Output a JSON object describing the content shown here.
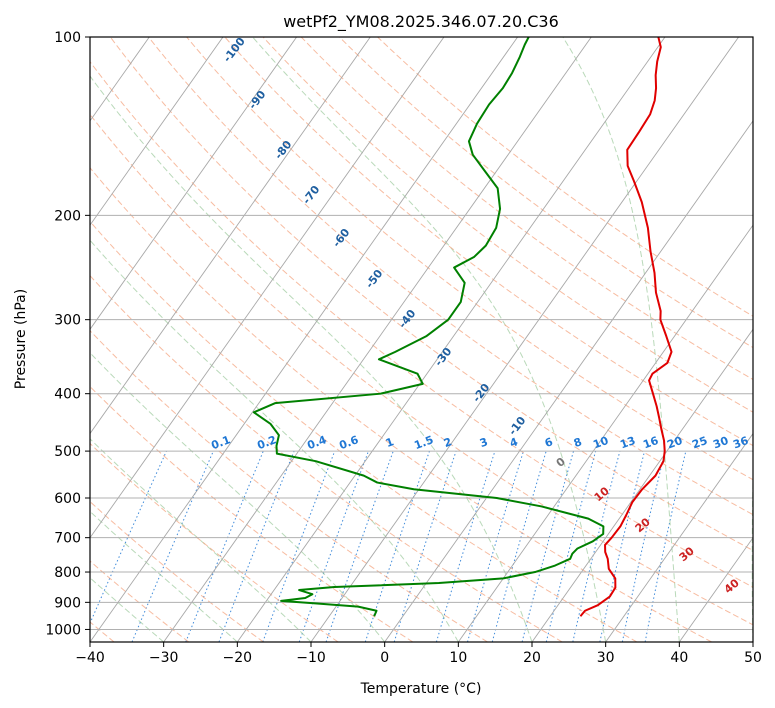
{
  "chart_data": {
    "type": "line",
    "title": "wetPf2_YM08.2025.346.07.20.C36",
    "xlabel": "Temperature (°C)",
    "ylabel": "Pressure (hPa)",
    "xlim": [
      -40,
      50
    ],
    "ylim": [
      1050,
      100
    ],
    "y_scale": "log",
    "x_ticks": [
      -40,
      -30,
      -20,
      -10,
      0,
      10,
      20,
      30,
      40,
      50
    ],
    "x_tick_labels": [
      "−40",
      "−30",
      "−20",
      "−10",
      "0",
      "10",
      "20",
      "30",
      "40",
      "50"
    ],
    "y_ticks": [
      1000,
      900,
      800,
      700,
      600,
      500,
      400,
      300,
      200,
      100
    ],
    "y_tick_labels": [
      "1000",
      "900",
      "800",
      "700",
      "600",
      "500",
      "400",
      "300",
      "200",
      "100"
    ],
    "grid": true,
    "series": [
      {
        "color": "#e00000",
        "points": [
          {
            "p": 950,
            "t": 24.1
          },
          {
            "p": 930,
            "t": 24.2
          },
          {
            "p": 910,
            "t": 25.4
          },
          {
            "p": 880,
            "t": 26.2
          },
          {
            "p": 850,
            "t": 26.1
          },
          {
            "p": 820,
            "t": 25.2
          },
          {
            "p": 790,
            "t": 23.4
          },
          {
            "p": 760,
            "t": 22.3
          },
          {
            "p": 740,
            "t": 21.3
          },
          {
            "p": 720,
            "t": 20.6
          },
          {
            "p": 700,
            "t": 20.8
          },
          {
            "p": 670,
            "t": 20.9
          },
          {
            "p": 640,
            "t": 20.6
          },
          {
            "p": 610,
            "t": 20.2
          },
          {
            "p": 580,
            "t": 20.3
          },
          {
            "p": 550,
            "t": 20.8
          },
          {
            "p": 520,
            "t": 20.5
          },
          {
            "p": 500,
            "t": 19.7
          },
          {
            "p": 480,
            "t": 18.6
          },
          {
            "p": 460,
            "t": 17.2
          },
          {
            "p": 440,
            "t": 15.8
          },
          {
            "p": 420,
            "t": 14.3
          },
          {
            "p": 400,
            "t": 12.6
          },
          {
            "p": 380,
            "t": 10.8
          },
          {
            "p": 370,
            "t": 10.6
          },
          {
            "p": 355,
            "t": 11.6
          },
          {
            "p": 340,
            "t": 11.1
          },
          {
            "p": 320,
            "t": 8.9
          },
          {
            "p": 300,
            "t": 6.5
          },
          {
            "p": 290,
            "t": 5.7
          },
          {
            "p": 270,
            "t": 3.3
          },
          {
            "p": 250,
            "t": 1.2
          },
          {
            "p": 230,
            "t": -1.4
          },
          {
            "p": 210,
            "t": -4.0
          },
          {
            "p": 190,
            "t": -7.3
          },
          {
            "p": 175,
            "t": -10.4
          },
          {
            "p": 165,
            "t": -12.7
          },
          {
            "p": 155,
            "t": -14.3
          },
          {
            "p": 145,
            "t": -14.4
          },
          {
            "p": 135,
            "t": -14.6
          },
          {
            "p": 128,
            "t": -15.3
          },
          {
            "p": 122,
            "t": -16.3
          },
          {
            "p": 116,
            "t": -17.6
          },
          {
            "p": 110,
            "t": -18.7
          },
          {
            "p": 104,
            "t": -19.6
          },
          {
            "p": 100,
            "t": -20.9
          }
        ]
      },
      {
        "color": "#008000",
        "points": [
          {
            "p": 950,
            "t": -3.9
          },
          {
            "p": 930,
            "t": -4.1
          },
          {
            "p": 915,
            "t": -7.0
          },
          {
            "p": 905,
            "t": -12.4
          },
          {
            "p": 895,
            "t": -18.0
          },
          {
            "p": 885,
            "t": -15.0
          },
          {
            "p": 872,
            "t": -14.4
          },
          {
            "p": 858,
            "t": -16.6
          },
          {
            "p": 848,
            "t": -12.1
          },
          {
            "p": 835,
            "t": 1.7
          },
          {
            "p": 820,
            "t": 10.0
          },
          {
            "p": 800,
            "t": 13.7
          },
          {
            "p": 780,
            "t": 15.8
          },
          {
            "p": 760,
            "t": 17.2
          },
          {
            "p": 745,
            "t": 17.0
          },
          {
            "p": 730,
            "t": 17.2
          },
          {
            "p": 710,
            "t": 18.6
          },
          {
            "p": 690,
            "t": 19.3
          },
          {
            "p": 670,
            "t": 18.6
          },
          {
            "p": 650,
            "t": 15.8
          },
          {
            "p": 620,
            "t": 8.3
          },
          {
            "p": 600,
            "t": 1.4
          },
          {
            "p": 580,
            "t": -10.7
          },
          {
            "p": 565,
            "t": -16.3
          },
          {
            "p": 550,
            "t": -18.8
          },
          {
            "p": 520,
            "t": -26.7
          },
          {
            "p": 505,
            "t": -32.7
          },
          {
            "p": 490,
            "t": -33.5
          },
          {
            "p": 470,
            "t": -34.2
          },
          {
            "p": 450,
            "t": -36.4
          },
          {
            "p": 430,
            "t": -39.8
          },
          {
            "p": 415,
            "t": -37.8
          },
          {
            "p": 400,
            "t": -24.4
          },
          {
            "p": 385,
            "t": -19.6
          },
          {
            "p": 370,
            "t": -21.3
          },
          {
            "p": 350,
            "t": -27.9
          },
          {
            "p": 340,
            "t": -26.4
          },
          {
            "p": 320,
            "t": -23.7
          },
          {
            "p": 300,
            "t": -22.3
          },
          {
            "p": 280,
            "t": -22.3
          },
          {
            "p": 260,
            "t": -23.6
          },
          {
            "p": 245,
            "t": -26.5
          },
          {
            "p": 235,
            "t": -24.8
          },
          {
            "p": 225,
            "t": -24.3
          },
          {
            "p": 210,
            "t": -24.6
          },
          {
            "p": 195,
            "t": -25.9
          },
          {
            "p": 180,
            "t": -28.2
          },
          {
            "p": 168,
            "t": -31.7
          },
          {
            "p": 158,
            "t": -34.8
          },
          {
            "p": 150,
            "t": -36.6
          },
          {
            "p": 140,
            "t": -37.2
          },
          {
            "p": 130,
            "t": -37.4
          },
          {
            "p": 122,
            "t": -37.1
          },
          {
            "p": 115,
            "t": -37.3
          },
          {
            "p": 108,
            "t": -37.8
          },
          {
            "p": 103,
            "t": -38.3
          },
          {
            "p": 100,
            "t": -38.5
          }
        ]
      }
    ],
    "dry_adiabat_labels": [
      "-100",
      "-90",
      "-80",
      "-70",
      "-60",
      "-50",
      "-40",
      "-30",
      "-20",
      "-10"
    ],
    "moist_adiabat_labels": [
      "0",
      "10",
      "20",
      "30",
      "40"
    ],
    "mixing_ratio_labels": [
      "0.1",
      "0.2",
      "0.4",
      "0.6",
      "1",
      "1.5",
      "2",
      "3",
      "4",
      "6",
      "8",
      "10",
      "13",
      "16",
      "20",
      "25",
      "30",
      "36"
    ],
    "colors": {
      "temperature": "#e00000",
      "dewpoint": "#008000",
      "isotherms": "#a8a8a8",
      "isobars": "#b0b0b0",
      "dry_adiabats": "#f4a582",
      "moist_adiabats": "#9bc99b",
      "mixing_ratio": "#1f77d4",
      "dry_adiabat_label": "#1f5fa0",
      "moist_adiabat_label": "#cc2222",
      "mixing_ratio_label": "#1f77d4",
      "isohume_zero_label": "#777777"
    }
  }
}
